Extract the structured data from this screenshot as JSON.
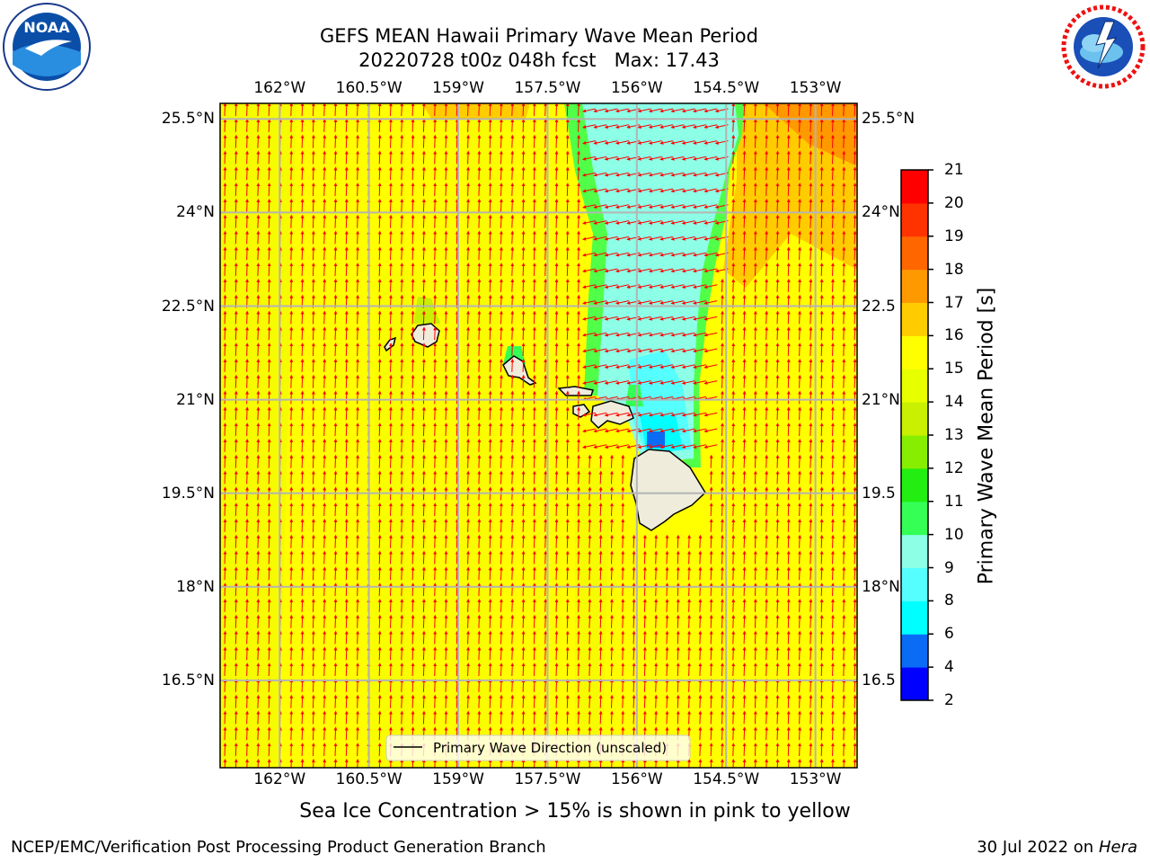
{
  "header": {
    "title_line1": "GEFS MEAN Hawaii Primary Wave Mean Period",
    "title_line2": "20220728 t00z 048h fcst   Max: 17.43"
  },
  "logos": {
    "left": {
      "name": "noaa-logo",
      "text": "NOAA",
      "ring_text": "NATIONAL OCEANIC AND ATMOSPHERIC ADMINISTRATION · U.S. DEPARTMENT OF COMMERCE"
    },
    "right": {
      "name": "nws-logo",
      "ring_text": "NATIONAL WEATHER SERVICE"
    }
  },
  "map": {
    "lon_ticks": [
      {
        "value": -162,
        "label": "162°W"
      },
      {
        "value": -160.5,
        "label": "160.5°W"
      },
      {
        "value": -159,
        "label": "159°W"
      },
      {
        "value": -157.5,
        "label": "157.5°W"
      },
      {
        "value": -156,
        "label": "156°W"
      },
      {
        "value": -154.5,
        "label": "154.5°W"
      },
      {
        "value": -153,
        "label": "153°W"
      }
    ],
    "lat_ticks_left": [
      {
        "value": 25.5,
        "label": "25.5°N"
      },
      {
        "value": 24,
        "label": "24°N"
      },
      {
        "value": 22.5,
        "label": "22.5°N"
      },
      {
        "value": 21,
        "label": "21°N"
      },
      {
        "value": 19.5,
        "label": "19.5°N"
      },
      {
        "value": 18,
        "label": "18°N"
      },
      {
        "value": 16.5,
        "label": "16.5°N"
      }
    ],
    "lat_ticks_right": [
      {
        "value": 25.5,
        "label": "25.5°N"
      },
      {
        "value": 24,
        "label": "24°N"
      },
      {
        "value": 22.5,
        "label": "22.5"
      },
      {
        "value": 21,
        "label": "21°N"
      },
      {
        "value": 19.5,
        "label": "19.5"
      },
      {
        "value": 18,
        "label": "18°N"
      },
      {
        "value": 16.5,
        "label": "16.5"
      }
    ],
    "lon_range": [
      -163,
      -152.3
    ],
    "lat_range": [
      15.1,
      25.75
    ],
    "legend_label": "Primary Wave Direction (unscaled)",
    "arrow_color": "#ff0000",
    "background_field_color": "#ffff00",
    "land_color": "#efecdc",
    "grid_color": "#b4b4b4"
  },
  "colorbar": {
    "title": "Primary Wave Mean Period [s]",
    "levels": [
      {
        "value": 2,
        "label": "2",
        "color": "#0000ff"
      },
      {
        "value": 4,
        "label": "4",
        "color": "#0a6cf5"
      },
      {
        "value": 6,
        "label": "6",
        "color": "#00ffff"
      },
      {
        "value": 8,
        "label": "8",
        "color": "#55ffff"
      },
      {
        "value": 9,
        "label": "9",
        "color": "#8cffe6"
      },
      {
        "value": 10,
        "label": "10",
        "color": "#33ff55"
      },
      {
        "value": 11,
        "label": "11",
        "color": "#22ee11"
      },
      {
        "value": 12,
        "label": "12",
        "color": "#88ee00"
      },
      {
        "value": 13,
        "label": "13",
        "color": "#c8f000"
      },
      {
        "value": 14,
        "label": "14",
        "color": "#e8ff00"
      },
      {
        "value": 15,
        "label": "15",
        "color": "#ffff00"
      },
      {
        "value": 16,
        "label": "16",
        "color": "#ffcc00"
      },
      {
        "value": 17,
        "label": "17",
        "color": "#ff9900"
      },
      {
        "value": 18,
        "label": "18",
        "color": "#ff6600"
      },
      {
        "value": 19,
        "label": "19",
        "color": "#ff3300"
      },
      {
        "value": 20,
        "label": "20",
        "color": "#ff0000"
      },
      {
        "value": 21,
        "label": "21",
        "color": ""
      }
    ]
  },
  "notes": {
    "sea_ice": "Sea Ice Concentration > 15% is shown in pink to yellow"
  },
  "footer": {
    "left": "NCEP/EMC/Verification Post Processing Product Generation Branch",
    "date": "30 Jul 2022 on",
    "host": "Hera"
  }
}
